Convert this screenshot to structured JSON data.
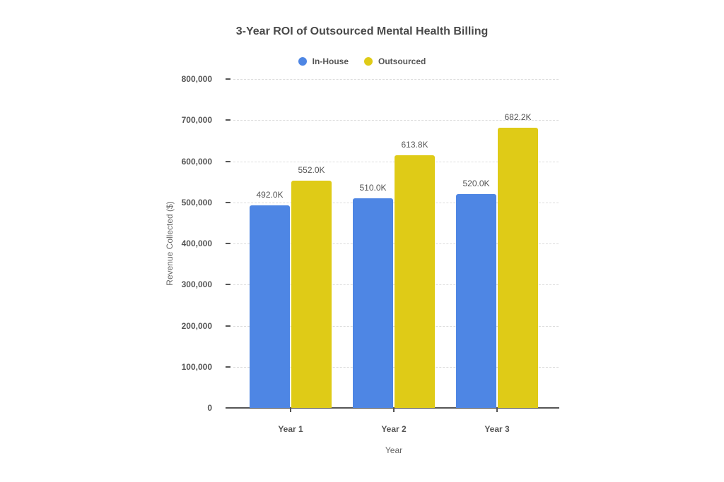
{
  "chart_data": {
    "type": "bar",
    "title": "3-Year ROI of Outsourced Mental Health Billing",
    "xlabel": "Year",
    "ylabel": "Revenue Collected ($)",
    "categories": [
      "Year 1",
      "Year 2",
      "Year 3"
    ],
    "series": [
      {
        "name": "In-House",
        "color": "#4e86e4",
        "values": [
          492000,
          510000,
          520000
        ],
        "labels": [
          "492.0K",
          "510.0K",
          "520.0K"
        ]
      },
      {
        "name": "Outsourced",
        "color": "#dfcb17",
        "values": [
          552000,
          613800,
          682200
        ],
        "labels": [
          "552.0K",
          "613.8K",
          "682.2K"
        ]
      }
    ],
    "ylim": [
      0,
      800000
    ],
    "yticks": [
      "0",
      "100,000",
      "200,000",
      "300,000",
      "400,000",
      "500,000",
      "600,000",
      "700,000",
      "800,000"
    ],
    "grid": true,
    "legend_position": "top"
  }
}
